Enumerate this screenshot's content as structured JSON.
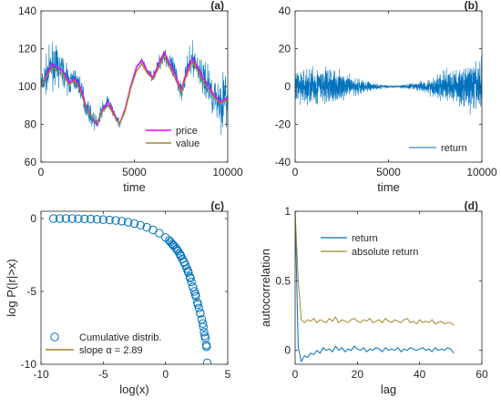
{
  "colors": {
    "blue": "#0072BD",
    "magenta": "#FF00FF",
    "olive": "#A2862E",
    "orange": "#D95319",
    "axis": "#262626"
  },
  "chart_data": [
    {
      "id": "a",
      "type": "line",
      "panel_label": "(a)",
      "xlabel": "time",
      "ylabel": "",
      "xlim": [
        0,
        10000
      ],
      "ylim": [
        60,
        140
      ],
      "xticks": [
        0,
        5000,
        10000
      ],
      "yticks": [
        60,
        80,
        100,
        120,
        140
      ],
      "legend": "bottom-right",
      "series": [
        {
          "name": "price",
          "color": "magenta",
          "x": [
            0,
            300,
            600,
            900,
            1200,
            1500,
            1800,
            2100,
            2400,
            2700,
            3000,
            3300,
            3600,
            3900,
            4200,
            4500,
            4800,
            5100,
            5400,
            5700,
            6000,
            6300,
            6600,
            6900,
            7200,
            7500,
            7800,
            8100,
            8400,
            8700,
            9000,
            9300,
            9600,
            10000
          ],
          "y": [
            100,
            106,
            112,
            110,
            108,
            102,
            104,
            100,
            90,
            84,
            80,
            88,
            92,
            86,
            80,
            88,
            100,
            110,
            114,
            108,
            105,
            112,
            118,
            112,
            106,
            98,
            108,
            115,
            110,
            104,
            100,
            95,
            92,
            94
          ]
        },
        {
          "name": "value",
          "color": "olive",
          "x": [
            0,
            300,
            600,
            900,
            1200,
            1500,
            1800,
            2100,
            2400,
            2700,
            3000,
            3300,
            3600,
            3900,
            4200,
            4500,
            4800,
            5100,
            5400,
            5700,
            6000,
            6300,
            6600,
            6900,
            7200,
            7500,
            7800,
            8100,
            8400,
            8700,
            9000,
            9300,
            9600,
            10000
          ],
          "y": [
            100,
            105,
            110,
            108,
            106,
            101,
            103,
            98,
            89,
            84,
            81,
            87,
            90,
            85,
            80,
            87,
            99,
            108,
            112,
            107,
            104,
            110,
            116,
            110,
            104,
            97,
            106,
            113,
            108,
            102,
            98,
            94,
            91,
            93
          ]
        },
        {
          "name": "",
          "color": "blue",
          "x": [
            0,
            300,
            600,
            900,
            1200,
            1500,
            1800,
            2100,
            2400,
            2700,
            3000,
            3300,
            3600,
            3900,
            4200,
            4500,
            4800,
            5100,
            5400,
            5700,
            6000,
            6300,
            6600,
            6900,
            7200,
            7500,
            7800,
            8100,
            8400,
            8700,
            9000,
            9300,
            9600,
            10000
          ],
          "y": [
            100,
            106,
            112,
            110,
            108,
            102,
            104,
            100,
            90,
            84,
            80,
            88,
            92,
            86,
            80,
            88,
            100,
            110,
            114,
            108,
            105,
            112,
            118,
            112,
            106,
            98,
            108,
            115,
            110,
            104,
            100,
            95,
            92,
            94
          ],
          "noise": [
            12,
            14,
            16,
            14,
            12,
            10,
            10,
            9,
            8,
            7,
            6,
            6,
            5,
            4,
            3,
            1,
            1,
            1,
            2,
            3,
            4,
            6,
            8,
            10,
            10,
            9,
            10,
            12,
            13,
            14,
            16,
            18,
            20,
            26
          ]
        }
      ]
    },
    {
      "id": "b",
      "type": "line",
      "panel_label": "(b)",
      "xlabel": "time",
      "ylabel": "",
      "xlim": [
        0,
        10000
      ],
      "ylim": [
        -40,
        40
      ],
      "xticks": [
        0,
        5000,
        10000
      ],
      "yticks": [
        -40,
        -20,
        0,
        20,
        40
      ],
      "legend": "bottom-right",
      "series": [
        {
          "name": "return",
          "color": "blue",
          "envelope_x": [
            0,
            500,
            1000,
            1500,
            2000,
            2500,
            3000,
            3500,
            4000,
            4500,
            5000,
            5500,
            6000,
            6500,
            7000,
            7500,
            8000,
            8500,
            9000,
            9500,
            10000
          ],
          "envelope_amp": [
            12,
            14,
            16,
            15,
            14,
            10,
            8,
            6,
            4,
            2,
            1,
            1,
            2,
            3,
            5,
            9,
            12,
            14,
            16,
            18,
            22
          ]
        }
      ]
    },
    {
      "id": "c",
      "type": "scatter",
      "panel_label": "(c)",
      "xlabel": "log(x)",
      "ylabel": "log P(|r|>x)",
      "xlim": [
        -10,
        5
      ],
      "ylim": [
        -10,
        0.5
      ],
      "xticks": [
        -10,
        -5,
        0,
        5
      ],
      "yticks": [
        -10,
        -5,
        0
      ],
      "legend": "bottom-left",
      "series": [
        {
          "name": "Cumulative distrib.",
          "color": "blue",
          "x": [
            -9,
            -8.5,
            -8.0,
            -7.5,
            -7.0,
            -6.5,
            -6.0,
            -5.5,
            -5.0,
            -4.5,
            -4.0,
            -3.5,
            -3.0,
            -2.5,
            -2.0,
            -1.5,
            -1.0,
            -0.5,
            0.0,
            0.3,
            0.6,
            0.9,
            1.2,
            1.5,
            1.8,
            2.0,
            2.2,
            2.4,
            2.6,
            2.8,
            3.0,
            3.1,
            3.2,
            3.3,
            3.35
          ],
          "y": [
            0,
            0,
            0,
            0,
            -0.01,
            -0.02,
            -0.03,
            -0.05,
            -0.07,
            -0.1,
            -0.13,
            -0.18,
            -0.25,
            -0.34,
            -0.46,
            -0.6,
            -0.78,
            -1.0,
            -1.3,
            -1.5,
            -1.8,
            -2.1,
            -2.5,
            -3.0,
            -3.6,
            -4.1,
            -4.7,
            -5.2,
            -5.9,
            -6.5,
            -7.2,
            -7.8,
            -8.2,
            -8.8,
            -9.9
          ]
        },
        {
          "name": "slope α = 2.89",
          "color": "olive",
          "x": [],
          "y": []
        }
      ]
    },
    {
      "id": "d",
      "type": "line",
      "panel_label": "(d)",
      "xlabel": "lag",
      "ylabel": "autocorrelation",
      "xlim": [
        0,
        60
      ],
      "ylim": [
        -0.1,
        1
      ],
      "xticks": [
        0,
        20,
        40,
        60
      ],
      "yticks": [
        0,
        0.5,
        1
      ],
      "legend": "top-right",
      "series": [
        {
          "name": "return",
          "color": "blue",
          "x": [
            0,
            1,
            2,
            3,
            4,
            5,
            6,
            7,
            8,
            9,
            10,
            11,
            12,
            13,
            14,
            15,
            16,
            17,
            18,
            19,
            20,
            21,
            22,
            23,
            24,
            25,
            26,
            27,
            28,
            29,
            30,
            31,
            32,
            33,
            34,
            35,
            36,
            37,
            38,
            39,
            40,
            41,
            42,
            43,
            44,
            45,
            46,
            47,
            48,
            49,
            50,
            51
          ],
          "y": [
            1,
            0.02,
            -0.08,
            -0.04,
            -0.05,
            -0.02,
            -0.03,
            0.0,
            -0.02,
            0.02,
            0.0,
            0.01,
            -0.01,
            0.03,
            0.0,
            0.02,
            -0.01,
            0.01,
            0.0,
            0.03,
            0.01,
            0.0,
            0.02,
            -0.01,
            0.01,
            0.0,
            0.02,
            0.01,
            -0.01,
            0.02,
            0.0,
            0.01,
            0.0,
            0.02,
            -0.01,
            0.01,
            0.0,
            0.02,
            0.01,
            0.0,
            0.01,
            0.02,
            0.0,
            0.01,
            -0.01,
            0.02,
            0.0,
            0.01,
            0.0,
            0.02,
            0.01,
            -0.02
          ]
        },
        {
          "name": "absolute return",
          "color": "olive",
          "x": [
            0,
            1,
            2,
            3,
            4,
            5,
            6,
            7,
            8,
            9,
            10,
            11,
            12,
            13,
            14,
            15,
            16,
            17,
            18,
            19,
            20,
            21,
            22,
            23,
            24,
            25,
            26,
            27,
            28,
            29,
            30,
            31,
            32,
            33,
            34,
            35,
            36,
            37,
            38,
            39,
            40,
            41,
            42,
            43,
            44,
            45,
            46,
            47,
            48,
            49,
            50,
            51
          ],
          "y": [
            1,
            0.5,
            0.22,
            0.2,
            0.22,
            0.21,
            0.23,
            0.2,
            0.22,
            0.21,
            0.2,
            0.23,
            0.21,
            0.24,
            0.2,
            0.22,
            0.21,
            0.2,
            0.22,
            0.23,
            0.21,
            0.2,
            0.22,
            0.21,
            0.23,
            0.2,
            0.21,
            0.22,
            0.2,
            0.23,
            0.21,
            0.2,
            0.22,
            0.21,
            0.2,
            0.22,
            0.23,
            0.2,
            0.21,
            0.19,
            0.22,
            0.2,
            0.21,
            0.2,
            0.22,
            0.19,
            0.2,
            0.21,
            0.19,
            0.2,
            0.2,
            0.18
          ]
        }
      ]
    }
  ]
}
